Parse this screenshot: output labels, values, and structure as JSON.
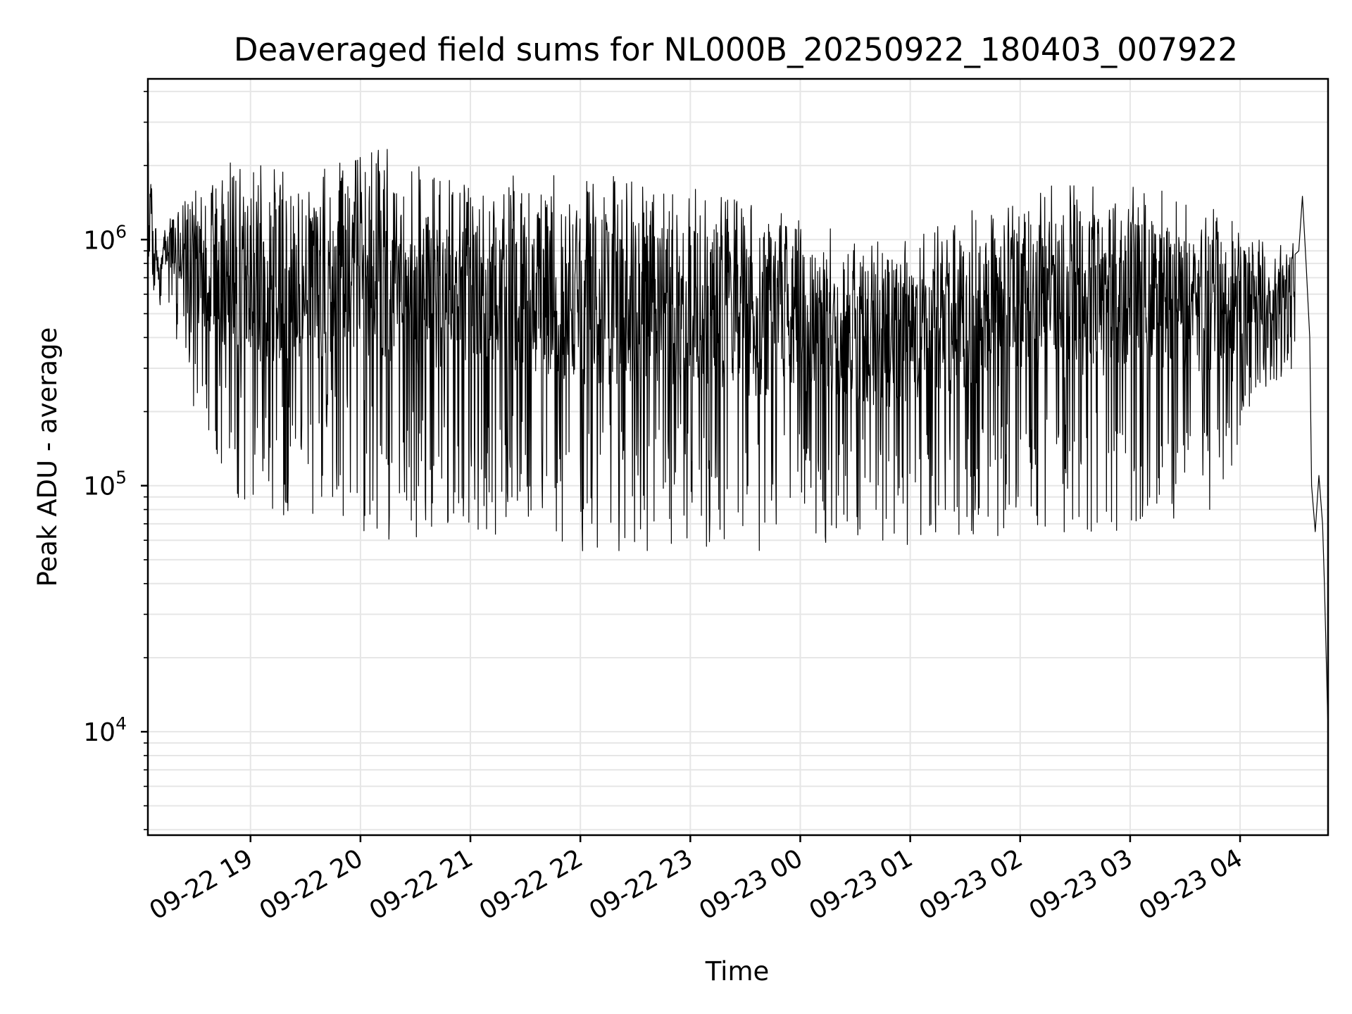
{
  "chart_data": {
    "type": "line",
    "title": "Deaveraged field sums for NL000B_20250922_180403_007922",
    "xlabel": "Time",
    "ylabel": "Peak ADU - average",
    "yscale": "log",
    "ylim": [
      3800,
      4500000
    ],
    "xlim": [
      "2025-09-22 18:04",
      "2025-09-23 04:48"
    ],
    "grid": true,
    "line_color": "#000000",
    "x_ticks": [
      {
        "value": "2025-09-22 19:00",
        "label": "09-22 19"
      },
      {
        "value": "2025-09-22 20:00",
        "label": "09-22 20"
      },
      {
        "value": "2025-09-22 21:00",
        "label": "09-22 21"
      },
      {
        "value": "2025-09-22 22:00",
        "label": "09-22 22"
      },
      {
        "value": "2025-09-22 23:00",
        "label": "09-22 23"
      },
      {
        "value": "2025-09-23 00:00",
        "label": "09-23 00"
      },
      {
        "value": "2025-09-23 01:00",
        "label": "09-23 01"
      },
      {
        "value": "2025-09-23 02:00",
        "label": "09-23 02"
      },
      {
        "value": "2025-09-23 03:00",
        "label": "09-23 03"
      },
      {
        "value": "2025-09-23 04:00",
        "label": "09-23 04"
      }
    ],
    "y_ticks": [
      {
        "value": 10000,
        "base": "10",
        "exp": "4"
      },
      {
        "value": 100000,
        "base": "10",
        "exp": "5"
      },
      {
        "value": 1000000,
        "base": "10",
        "exp": "6"
      }
    ],
    "envelope": [
      {
        "x": "2025-09-22 18:04",
        "low": 500000,
        "high": 3300000
      },
      {
        "x": "2025-09-22 18:10",
        "low": 550000,
        "high": 800000
      },
      {
        "x": "2025-09-22 18:15",
        "low": 500000,
        "high": 1300000
      },
      {
        "x": "2025-09-22 18:25",
        "low": 300000,
        "high": 1500000
      },
      {
        "x": "2025-09-22 18:35",
        "low": 120000,
        "high": 1700000
      },
      {
        "x": "2025-09-22 18:50",
        "low": 80000,
        "high": 2100000
      },
      {
        "x": "2025-09-22 19:15",
        "low": 65000,
        "high": 2000000
      },
      {
        "x": "2025-09-22 19:45",
        "low": 80000,
        "high": 2000000
      },
      {
        "x": "2025-09-22 20:15",
        "low": 55000,
        "high": 2400000
      },
      {
        "x": "2025-09-22 20:45",
        "low": 60000,
        "high": 1900000
      },
      {
        "x": "2025-09-22 21:30",
        "low": 65000,
        "high": 1800000
      },
      {
        "x": "2025-09-22 22:00",
        "low": 50000,
        "high": 1900000
      },
      {
        "x": "2025-09-22 22:45",
        "low": 55000,
        "high": 1700000
      },
      {
        "x": "2025-09-22 23:30",
        "low": 50000,
        "high": 1500000
      },
      {
        "x": "2025-09-23 00:00",
        "low": 55000,
        "high": 1300000
      },
      {
        "x": "2025-09-23 00:45",
        "low": 55000,
        "high": 1000000
      },
      {
        "x": "2025-09-23 01:30",
        "low": 60000,
        "high": 1300000
      },
      {
        "x": "2025-09-23 02:15",
        "low": 60000,
        "high": 1700000
      },
      {
        "x": "2025-09-23 03:00",
        "low": 65000,
        "high": 1700000
      },
      {
        "x": "2025-09-23 03:45",
        "low": 80000,
        "high": 1400000
      },
      {
        "x": "2025-09-23 04:15",
        "low": 250000,
        "high": 950000
      },
      {
        "x": "2025-09-23 04:30",
        "low": 300000,
        "high": 1000000
      }
    ],
    "tail": [
      {
        "x": "2025-09-23 04:32",
        "y": 900000
      },
      {
        "x": "2025-09-23 04:34",
        "y": 1500000
      },
      {
        "x": "2025-09-23 04:36",
        "y": 800000
      },
      {
        "x": "2025-09-23 04:38",
        "y": 400000
      },
      {
        "x": "2025-09-23 04:39",
        "y": 100000
      },
      {
        "x": "2025-09-23 04:41",
        "y": 65000
      },
      {
        "x": "2025-09-23 04:43",
        "y": 110000
      },
      {
        "x": "2025-09-23 04:45",
        "y": 70000
      },
      {
        "x": "2025-09-23 04:46",
        "y": 40000
      },
      {
        "x": "2025-09-23 04:48",
        "y": 10000
      }
    ],
    "samples_per_hour": 260
  }
}
